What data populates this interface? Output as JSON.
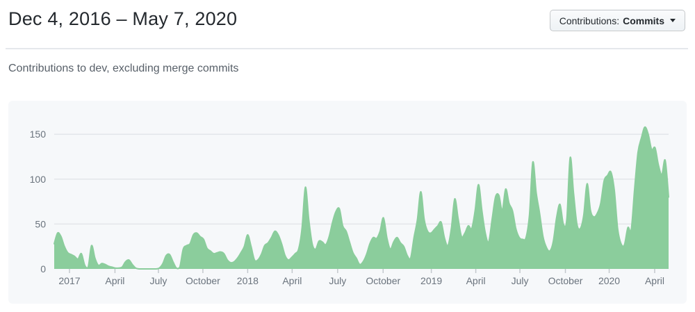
{
  "header": {
    "title": "Dec 4, 2016 – May 7, 2020",
    "filter_button": {
      "label_prefix": "Contributions:",
      "selected": "Commits",
      "caret_icon": "triangle-down"
    }
  },
  "subtitle": "Contributions to dev, excluding merge commits",
  "colors": {
    "area_green": "#8bcd9c",
    "panel_background": "#f6f8fa",
    "gridline": "#e3e6ea",
    "tick": "#c3c8cd",
    "axis_text": "#6a737d",
    "title_text": "#24292e",
    "subtitle_text": "#586069"
  },
  "chart_data": {
    "type": "area",
    "series_name": "Commits per week",
    "x_unit": "week",
    "ylim": [
      0,
      160
    ],
    "y_ticks": [
      0,
      50,
      100,
      150
    ],
    "grid": "horizontal",
    "x_ticks": [
      {
        "label": "2017",
        "week": 4.5
      },
      {
        "label": "April",
        "week": 17.9
      },
      {
        "label": "July",
        "week": 30.7
      },
      {
        "label": "October",
        "week": 43.8
      },
      {
        "label": "2018",
        "week": 57.0
      },
      {
        "label": "April",
        "week": 70.1
      },
      {
        "label": "July",
        "week": 83.5
      },
      {
        "label": "October",
        "week": 96.9
      },
      {
        "label": "2019",
        "week": 111.1
      },
      {
        "label": "April",
        "week": 124.2
      },
      {
        "label": "July",
        "week": 137.2
      },
      {
        "label": "October",
        "week": 150.6
      },
      {
        "label": "2020",
        "week": 163.5
      },
      {
        "label": "April",
        "week": 176.9
      }
    ],
    "values": [
      28,
      40,
      36,
      25,
      18,
      16,
      14,
      11,
      17,
      4,
      2,
      26,
      12,
      4,
      6,
      5,
      3,
      2,
      1,
      1,
      2,
      8,
      10,
      5,
      1,
      0,
      0,
      0,
      0,
      0,
      0,
      1,
      6,
      15,
      16,
      8,
      1,
      2,
      22,
      26,
      28,
      38,
      40,
      36,
      33,
      23,
      20,
      17,
      18,
      19,
      17,
      10,
      7,
      8,
      12,
      18,
      25,
      38,
      25,
      10,
      10,
      16,
      26,
      29,
      35,
      42,
      38,
      28,
      15,
      10,
      13,
      17,
      22,
      45,
      91,
      55,
      28,
      22,
      31,
      30,
      27,
      36,
      52,
      64,
      67,
      48,
      42,
      30,
      18,
      12,
      5,
      8,
      16,
      28,
      35,
      34,
      42,
      57,
      35,
      22,
      30,
      35,
      29,
      25,
      15,
      12,
      35,
      55,
      86,
      55,
      42,
      40,
      44,
      48,
      52,
      34,
      26,
      45,
      78,
      56,
      36,
      40,
      48,
      45,
      65,
      94,
      65,
      40,
      30,
      55,
      80,
      82,
      65,
      89,
      73,
      65,
      45,
      35,
      33,
      35,
      60,
      119,
      85,
      62,
      36,
      24,
      20,
      30,
      57,
      72,
      50,
      55,
      124,
      85,
      50,
      45,
      60,
      95,
      65,
      58,
      62,
      73,
      98,
      104,
      108,
      88,
      45,
      28,
      27,
      46,
      44,
      90,
      130,
      146,
      158,
      150,
      133,
      135,
      116,
      105,
      121,
      80
    ]
  }
}
